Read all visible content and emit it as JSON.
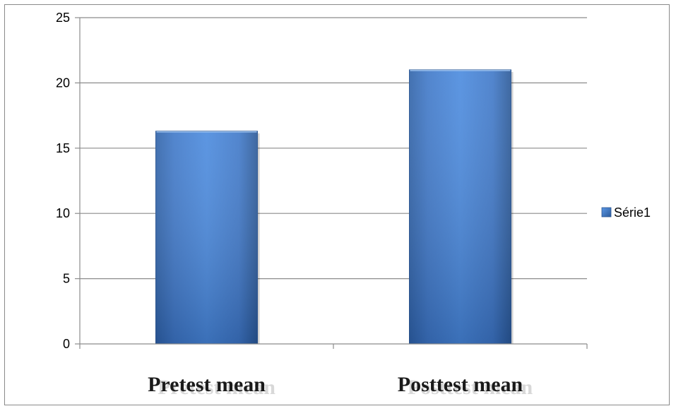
{
  "chart_data": {
    "type": "bar",
    "categories": [
      "Pretest mean",
      "Posttest mean"
    ],
    "series": [
      {
        "name": "Série1",
        "values": [
          16.3,
          21.0
        ],
        "color": "#4a86d4"
      }
    ],
    "ylim": [
      0,
      25
    ],
    "yticks": [
      0,
      5,
      10,
      15,
      20,
      25
    ],
    "grid": true,
    "legend": "right"
  }
}
